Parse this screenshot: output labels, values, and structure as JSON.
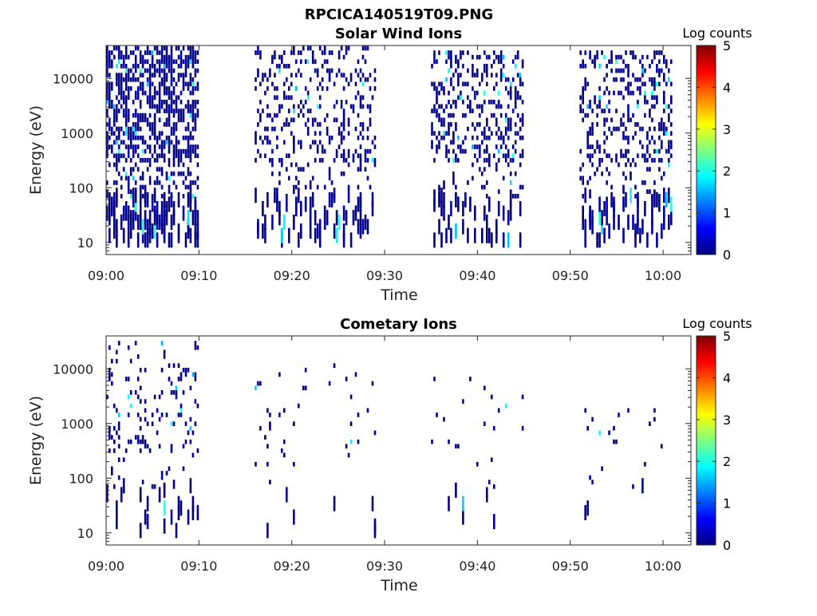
{
  "figure_title": "RPCICA140519T09.PNG",
  "colormap": {
    "name": "jet",
    "stops": [
      "#00007f",
      "#0000ff",
      "#007fff",
      "#00ffff",
      "#7fff7f",
      "#ffff00",
      "#ff7f00",
      "#ff0000",
      "#7f0000"
    ]
  },
  "chart_data": [
    {
      "type": "heatmap",
      "title": "Solar Wind Ions",
      "xlabel": "Time",
      "ylabel": "Energy (eV)",
      "x_scale": "time",
      "y_scale": "log",
      "xlim": [
        "09:00",
        "10:03"
      ],
      "ylim": [
        6,
        40000
      ],
      "x_ticks": [
        "09:00",
        "09:10",
        "09:20",
        "09:30",
        "09:40",
        "09:50",
        "10:00"
      ],
      "y_ticks": [
        "10",
        "100",
        "1000",
        "10000"
      ],
      "y_tick_values": [
        10,
        100,
        1000,
        10000
      ],
      "colorbar": {
        "label": "Log counts",
        "ticks": [
          "0",
          "1",
          "2",
          "3",
          "4",
          "5"
        ],
        "range": [
          0,
          5
        ]
      },
      "data_windows": [
        {
          "start": "09:00",
          "end": "09:10",
          "density": 0.55,
          "max_energy": 38000
        },
        {
          "start": "09:16",
          "end": "09:29",
          "density": 0.22,
          "max_energy": 38000
        },
        {
          "start": "09:35",
          "end": "09:45",
          "density": 0.3,
          "max_energy": 30000
        },
        {
          "start": "09:51",
          "end": "10:01",
          "density": 0.3,
          "max_energy": 30000
        }
      ]
    },
    {
      "type": "heatmap",
      "title": "Cometary Ions",
      "xlabel": "Time",
      "ylabel": "Energy (eV)",
      "x_scale": "time",
      "y_scale": "log",
      "xlim": [
        "09:00",
        "10:03"
      ],
      "ylim": [
        6,
        40000
      ],
      "x_ticks": [
        "09:00",
        "09:10",
        "09:20",
        "09:30",
        "09:40",
        "09:50",
        "10:00"
      ],
      "y_ticks": [
        "10",
        "100",
        "1000",
        "10000"
      ],
      "y_tick_values": [
        10,
        100,
        1000,
        10000
      ],
      "colorbar": {
        "label": "Log counts",
        "ticks": [
          "0",
          "1",
          "2",
          "3",
          "4",
          "5"
        ],
        "range": [
          0,
          5
        ]
      },
      "data_windows": [
        {
          "start": "09:00",
          "end": "09:10",
          "density": 0.12,
          "max_energy": 30000
        },
        {
          "start": "09:16",
          "end": "09:29",
          "density": 0.035,
          "max_energy": 13000
        },
        {
          "start": "09:35",
          "end": "09:45",
          "density": 0.03,
          "max_energy": 6000
        },
        {
          "start": "09:51",
          "end": "10:01",
          "density": 0.035,
          "max_energy": 2000
        }
      ]
    }
  ]
}
